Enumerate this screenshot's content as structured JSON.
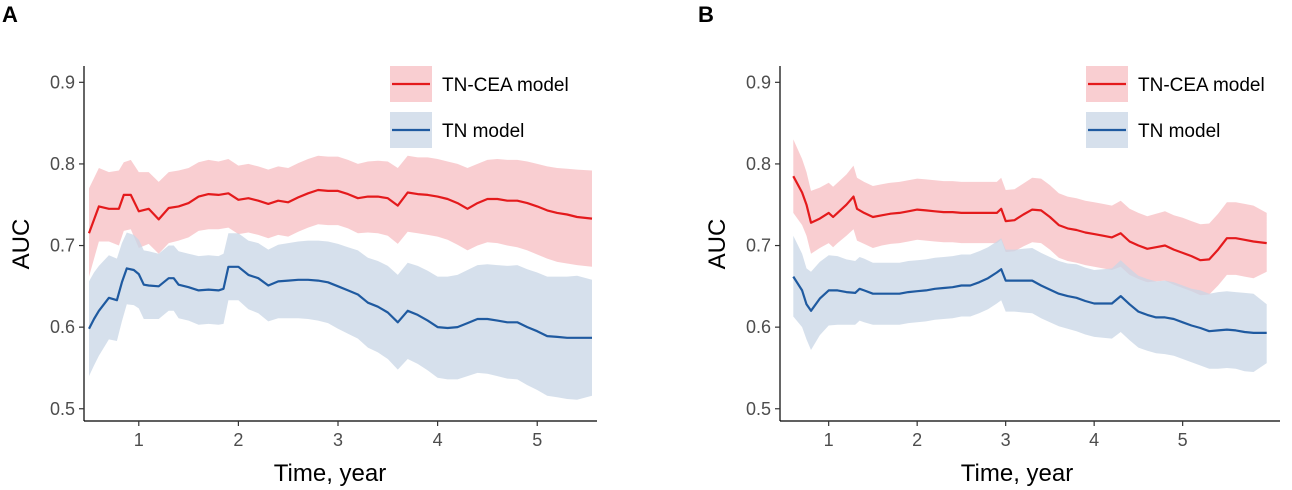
{
  "chart_data": [
    {
      "panel": "A",
      "type": "line",
      "xlabel": "Time, year",
      "ylabel": "AUC",
      "xlim": [
        0.45,
        5.6
      ],
      "ylim": [
        0.485,
        0.92
      ],
      "xticks": [
        1,
        2,
        3,
        4,
        5
      ],
      "yticks": [
        0.5,
        0.6,
        0.7,
        0.8,
        0.9
      ],
      "grid": false,
      "legend_position": "top-right",
      "series": [
        {
          "name": "TN-CEA model",
          "color": "#e41a1c",
          "band_color": "#f4a6ab",
          "x": [
            0.5,
            0.6,
            0.7,
            0.8,
            0.85,
            0.92,
            1.0,
            1.1,
            1.2,
            1.3,
            1.4,
            1.5,
            1.6,
            1.7,
            1.8,
            1.9,
            2.0,
            2.1,
            2.2,
            2.3,
            2.4,
            2.5,
            2.6,
            2.7,
            2.8,
            2.9,
            3.0,
            3.1,
            3.2,
            3.3,
            3.4,
            3.5,
            3.6,
            3.7,
            3.8,
            3.9,
            4.0,
            4.1,
            4.2,
            4.3,
            4.4,
            4.5,
            4.6,
            4.7,
            4.8,
            4.9,
            5.0,
            5.1,
            5.2,
            5.3,
            5.4,
            5.55
          ],
          "values": [
            0.715,
            0.748,
            0.745,
            0.745,
            0.762,
            0.762,
            0.742,
            0.745,
            0.732,
            0.746,
            0.748,
            0.752,
            0.76,
            0.763,
            0.762,
            0.764,
            0.756,
            0.758,
            0.755,
            0.751,
            0.755,
            0.753,
            0.759,
            0.764,
            0.768,
            0.767,
            0.767,
            0.763,
            0.758,
            0.76,
            0.76,
            0.758,
            0.749,
            0.765,
            0.763,
            0.762,
            0.76,
            0.757,
            0.752,
            0.745,
            0.752,
            0.757,
            0.757,
            0.755,
            0.755,
            0.752,
            0.748,
            0.743,
            0.74,
            0.738,
            0.735,
            0.733
          ],
          "lower": [
            0.662,
            0.705,
            0.705,
            0.7,
            0.718,
            0.72,
            0.697,
            0.702,
            0.69,
            0.703,
            0.706,
            0.71,
            0.718,
            0.72,
            0.72,
            0.722,
            0.714,
            0.716,
            0.713,
            0.709,
            0.713,
            0.711,
            0.717,
            0.722,
            0.726,
            0.725,
            0.725,
            0.721,
            0.715,
            0.716,
            0.715,
            0.712,
            0.702,
            0.717,
            0.715,
            0.713,
            0.711,
            0.707,
            0.701,
            0.694,
            0.7,
            0.704,
            0.703,
            0.7,
            0.698,
            0.694,
            0.689,
            0.684,
            0.68,
            0.678,
            0.676,
            0.674
          ],
          "upper": [
            0.77,
            0.795,
            0.79,
            0.792,
            0.802,
            0.805,
            0.79,
            0.79,
            0.778,
            0.79,
            0.792,
            0.795,
            0.802,
            0.805,
            0.803,
            0.806,
            0.798,
            0.8,
            0.797,
            0.793,
            0.797,
            0.795,
            0.801,
            0.806,
            0.81,
            0.809,
            0.809,
            0.805,
            0.8,
            0.803,
            0.804,
            0.803,
            0.795,
            0.81,
            0.808,
            0.808,
            0.806,
            0.803,
            0.8,
            0.795,
            0.8,
            0.805,
            0.806,
            0.805,
            0.805,
            0.803,
            0.8,
            0.797,
            0.795,
            0.794,
            0.793,
            0.792
          ]
        },
        {
          "name": "TN model",
          "color": "#1f5aa0",
          "band_color": "#c8d6e6",
          "x": [
            0.5,
            0.55,
            0.6,
            0.7,
            0.78,
            0.83,
            0.88,
            0.95,
            1.0,
            1.05,
            1.1,
            1.2,
            1.3,
            1.35,
            1.4,
            1.5,
            1.6,
            1.7,
            1.8,
            1.85,
            1.9,
            2.0,
            2.1,
            2.2,
            2.3,
            2.4,
            2.5,
            2.6,
            2.7,
            2.8,
            2.9,
            3.0,
            3.1,
            3.2,
            3.3,
            3.4,
            3.5,
            3.6,
            3.7,
            3.8,
            3.9,
            4.0,
            4.1,
            4.2,
            4.3,
            4.4,
            4.5,
            4.6,
            4.7,
            4.8,
            4.9,
            5.0,
            5.1,
            5.2,
            5.3,
            5.4,
            5.55
          ],
          "values": [
            0.598,
            0.61,
            0.62,
            0.636,
            0.633,
            0.655,
            0.672,
            0.67,
            0.665,
            0.652,
            0.651,
            0.65,
            0.66,
            0.66,
            0.652,
            0.649,
            0.645,
            0.646,
            0.645,
            0.647,
            0.674,
            0.674,
            0.664,
            0.66,
            0.651,
            0.656,
            0.657,
            0.658,
            0.658,
            0.657,
            0.655,
            0.65,
            0.645,
            0.64,
            0.63,
            0.625,
            0.618,
            0.606,
            0.62,
            0.615,
            0.608,
            0.6,
            0.599,
            0.6,
            0.605,
            0.61,
            0.61,
            0.608,
            0.606,
            0.606,
            0.6,
            0.595,
            0.589,
            0.588,
            0.587,
            0.587,
            0.587
          ],
          "lower": [
            0.54,
            0.553,
            0.565,
            0.585,
            0.583,
            0.607,
            0.628,
            0.627,
            0.623,
            0.61,
            0.61,
            0.61,
            0.62,
            0.62,
            0.611,
            0.608,
            0.603,
            0.604,
            0.603,
            0.604,
            0.633,
            0.633,
            0.622,
            0.617,
            0.607,
            0.611,
            0.611,
            0.611,
            0.61,
            0.608,
            0.605,
            0.598,
            0.592,
            0.586,
            0.575,
            0.569,
            0.561,
            0.548,
            0.561,
            0.555,
            0.547,
            0.538,
            0.536,
            0.536,
            0.54,
            0.544,
            0.543,
            0.54,
            0.537,
            0.536,
            0.529,
            0.523,
            0.516,
            0.514,
            0.512,
            0.511,
            0.516
          ],
          "upper": [
            0.656,
            0.667,
            0.675,
            0.688,
            0.684,
            0.703,
            0.716,
            0.713,
            0.707,
            0.694,
            0.693,
            0.69,
            0.7,
            0.7,
            0.693,
            0.69,
            0.687,
            0.688,
            0.687,
            0.69,
            0.715,
            0.715,
            0.706,
            0.703,
            0.695,
            0.701,
            0.703,
            0.705,
            0.706,
            0.706,
            0.705,
            0.702,
            0.698,
            0.694,
            0.685,
            0.681,
            0.675,
            0.664,
            0.679,
            0.675,
            0.669,
            0.662,
            0.662,
            0.664,
            0.67,
            0.676,
            0.677,
            0.676,
            0.675,
            0.676,
            0.671,
            0.667,
            0.662,
            0.662,
            0.662,
            0.663,
            0.658
          ]
        }
      ]
    },
    {
      "panel": "B",
      "type": "line",
      "xlabel": "Time, year",
      "ylabel": "AUC",
      "xlim": [
        0.45,
        6.1
      ],
      "ylim": [
        0.485,
        0.92
      ],
      "xticks": [
        1,
        2,
        3,
        4,
        5
      ],
      "yticks": [
        0.5,
        0.6,
        0.7,
        0.8,
        0.9
      ],
      "grid": false,
      "legend_position": "top-right",
      "series": [
        {
          "name": "TN-CEA model",
          "color": "#e41a1c",
          "band_color": "#f4a6ab",
          "x": [
            0.6,
            0.7,
            0.75,
            0.8,
            0.9,
            1.0,
            1.05,
            1.1,
            1.2,
            1.28,
            1.32,
            1.4,
            1.5,
            1.6,
            1.7,
            1.8,
            1.9,
            2.0,
            2.1,
            2.2,
            2.3,
            2.4,
            2.5,
            2.6,
            2.7,
            2.8,
            2.9,
            2.95,
            3.0,
            3.1,
            3.2,
            3.3,
            3.4,
            3.5,
            3.6,
            3.7,
            3.8,
            3.9,
            4.0,
            4.1,
            4.2,
            4.3,
            4.4,
            4.5,
            4.6,
            4.7,
            4.8,
            4.9,
            5.0,
            5.1,
            5.2,
            5.3,
            5.4,
            5.5,
            5.6,
            5.7,
            5.8,
            5.95
          ],
          "values": [
            0.785,
            0.765,
            0.75,
            0.728,
            0.733,
            0.74,
            0.735,
            0.74,
            0.75,
            0.76,
            0.745,
            0.74,
            0.735,
            0.737,
            0.739,
            0.74,
            0.742,
            0.744,
            0.743,
            0.742,
            0.741,
            0.741,
            0.74,
            0.74,
            0.74,
            0.74,
            0.74,
            0.745,
            0.73,
            0.731,
            0.738,
            0.744,
            0.743,
            0.735,
            0.725,
            0.721,
            0.719,
            0.716,
            0.714,
            0.712,
            0.71,
            0.715,
            0.705,
            0.7,
            0.696,
            0.698,
            0.7,
            0.695,
            0.691,
            0.687,
            0.682,
            0.683,
            0.695,
            0.709,
            0.709,
            0.707,
            0.705,
            0.703
          ],
          "lower": [
            0.74,
            0.725,
            0.712,
            0.69,
            0.697,
            0.703,
            0.698,
            0.703,
            0.712,
            0.72,
            0.706,
            0.702,
            0.697,
            0.7,
            0.702,
            0.703,
            0.705,
            0.707,
            0.706,
            0.705,
            0.704,
            0.704,
            0.703,
            0.703,
            0.703,
            0.703,
            0.703,
            0.707,
            0.692,
            0.693,
            0.699,
            0.704,
            0.703,
            0.695,
            0.685,
            0.681,
            0.679,
            0.676,
            0.674,
            0.672,
            0.67,
            0.674,
            0.664,
            0.659,
            0.655,
            0.656,
            0.657,
            0.652,
            0.648,
            0.644,
            0.639,
            0.64,
            0.651,
            0.664,
            0.664,
            0.662,
            0.66,
            0.668
          ],
          "upper": [
            0.83,
            0.806,
            0.79,
            0.767,
            0.771,
            0.777,
            0.772,
            0.777,
            0.787,
            0.798,
            0.783,
            0.778,
            0.773,
            0.775,
            0.777,
            0.778,
            0.78,
            0.782,
            0.781,
            0.78,
            0.779,
            0.779,
            0.778,
            0.778,
            0.778,
            0.778,
            0.778,
            0.783,
            0.768,
            0.769,
            0.776,
            0.783,
            0.782,
            0.774,
            0.764,
            0.76,
            0.758,
            0.755,
            0.753,
            0.751,
            0.749,
            0.755,
            0.745,
            0.74,
            0.736,
            0.739,
            0.742,
            0.737,
            0.734,
            0.73,
            0.726,
            0.727,
            0.739,
            0.753,
            0.753,
            0.751,
            0.749,
            0.74
          ]
        },
        {
          "name": "TN model",
          "color": "#1f5aa0",
          "band_color": "#c8d6e6",
          "x": [
            0.6,
            0.7,
            0.75,
            0.8,
            0.9,
            1.0,
            1.1,
            1.2,
            1.3,
            1.35,
            1.4,
            1.5,
            1.6,
            1.7,
            1.8,
            1.9,
            2.0,
            2.1,
            2.2,
            2.3,
            2.4,
            2.5,
            2.6,
            2.7,
            2.8,
            2.9,
            2.95,
            3.0,
            3.1,
            3.2,
            3.3,
            3.4,
            3.5,
            3.6,
            3.7,
            3.8,
            3.9,
            4.0,
            4.1,
            4.2,
            4.3,
            4.4,
            4.5,
            4.6,
            4.7,
            4.8,
            4.9,
            5.0,
            5.1,
            5.2,
            5.3,
            5.4,
            5.5,
            5.6,
            5.7,
            5.8,
            5.95
          ],
          "values": [
            0.662,
            0.645,
            0.628,
            0.62,
            0.635,
            0.645,
            0.645,
            0.643,
            0.642,
            0.647,
            0.645,
            0.641,
            0.641,
            0.641,
            0.641,
            0.643,
            0.644,
            0.645,
            0.647,
            0.648,
            0.649,
            0.651,
            0.651,
            0.655,
            0.66,
            0.667,
            0.671,
            0.657,
            0.657,
            0.657,
            0.657,
            0.651,
            0.646,
            0.641,
            0.638,
            0.636,
            0.632,
            0.629,
            0.629,
            0.629,
            0.638,
            0.628,
            0.619,
            0.615,
            0.612,
            0.612,
            0.61,
            0.606,
            0.602,
            0.599,
            0.595,
            0.596,
            0.597,
            0.596,
            0.594,
            0.593,
            0.593
          ],
          "lower": [
            0.613,
            0.6,
            0.585,
            0.572,
            0.59,
            0.602,
            0.603,
            0.603,
            0.603,
            0.608,
            0.606,
            0.603,
            0.603,
            0.603,
            0.603,
            0.605,
            0.606,
            0.607,
            0.609,
            0.61,
            0.611,
            0.613,
            0.613,
            0.617,
            0.622,
            0.629,
            0.633,
            0.619,
            0.619,
            0.618,
            0.617,
            0.611,
            0.606,
            0.601,
            0.598,
            0.595,
            0.591,
            0.588,
            0.587,
            0.586,
            0.594,
            0.584,
            0.575,
            0.571,
            0.568,
            0.567,
            0.565,
            0.561,
            0.557,
            0.553,
            0.549,
            0.549,
            0.55,
            0.549,
            0.546,
            0.545,
            0.556
          ],
          "upper": [
            0.712,
            0.69,
            0.672,
            0.668,
            0.68,
            0.688,
            0.687,
            0.683,
            0.681,
            0.686,
            0.684,
            0.679,
            0.679,
            0.679,
            0.679,
            0.681,
            0.682,
            0.683,
            0.685,
            0.686,
            0.687,
            0.689,
            0.689,
            0.693,
            0.698,
            0.705,
            0.709,
            0.695,
            0.695,
            0.696,
            0.697,
            0.691,
            0.686,
            0.681,
            0.678,
            0.677,
            0.673,
            0.67,
            0.671,
            0.672,
            0.682,
            0.672,
            0.663,
            0.659,
            0.656,
            0.657,
            0.655,
            0.651,
            0.647,
            0.645,
            0.641,
            0.643,
            0.644,
            0.643,
            0.642,
            0.641,
            0.628
          ]
        }
      ]
    }
  ]
}
